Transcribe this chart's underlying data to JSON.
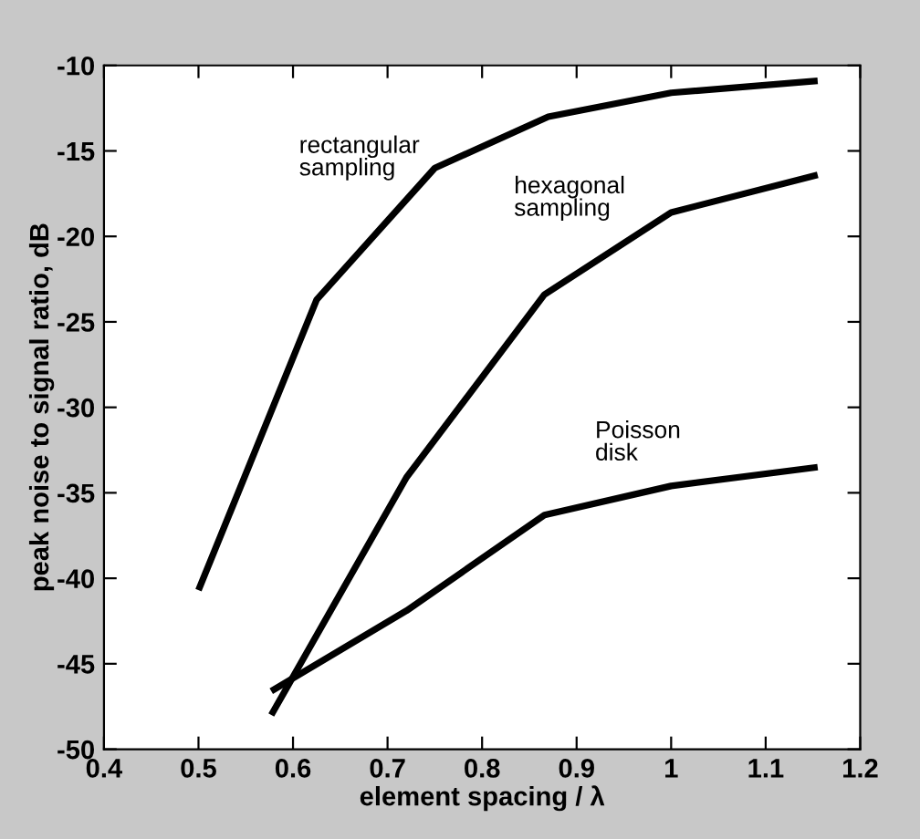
{
  "chart_data": {
    "type": "line",
    "xlabel": "element spacing / λ",
    "ylabel": "peak noise to signal ratio, dB",
    "series": [
      {
        "name": "rectangular\nsampling",
        "color": "#000000",
        "x": [
          0.5,
          0.625,
          0.75,
          0.87,
          1.0,
          1.155
        ],
        "values": [
          -40.7,
          -23.7,
          -16.0,
          -13.0,
          -11.6,
          -10.9
        ]
      },
      {
        "name": "hexagonal\nsampling",
        "color": "#000000",
        "x": [
          0.577,
          0.72,
          0.866,
          1.0,
          1.155
        ],
        "values": [
          -48.0,
          -34.1,
          -23.4,
          -18.6,
          -16.4
        ]
      },
      {
        "name": "Poisson\ndisk",
        "color": "#000000",
        "x": [
          0.577,
          0.72,
          0.866,
          1.0,
          1.155
        ],
        "values": [
          -46.6,
          -41.9,
          -36.3,
          -34.6,
          -33.5
        ]
      }
    ],
    "xlim": [
      0.4,
      1.2
    ],
    "ylim": [
      -50,
      -10
    ],
    "xticks": [
      0.4,
      0.5,
      0.6,
      0.7,
      0.8,
      0.9,
      {
        "value": 1,
        "label": "1"
      },
      1.1,
      1.2
    ],
    "yticks": [
      -50,
      -45,
      -40,
      -35,
      -30,
      -25,
      -20,
      -15,
      -10
    ],
    "grid": false,
    "legend": false,
    "marker": "none",
    "line_style": "solid"
  }
}
